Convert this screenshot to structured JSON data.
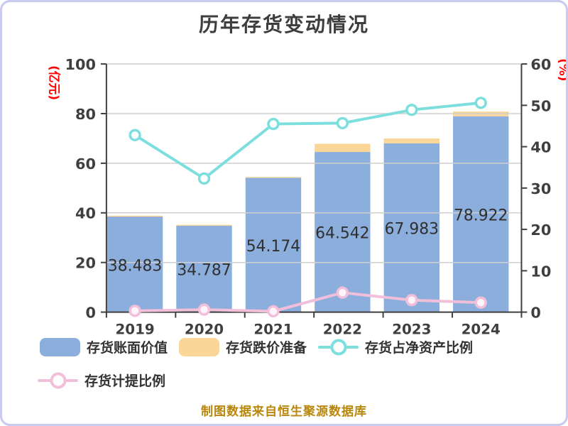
{
  "source_note": "制图数据来自恒生聚源数据库",
  "colors": {
    "frame_border": "#c9c9f2",
    "title_text": "#3d3d3d",
    "axis_line": "#3f3f3f",
    "tick_label": "#3f3f3f",
    "grid_line": "#cfcfcf",
    "bar_value_label": "#303030",
    "axis_unit_label": "#ff0000",
    "footer_text": "#b8860b"
  },
  "chart_data": {
    "type": "bar",
    "subtype": "stacked-bar-with-lines-combo",
    "title": "历年存货变动情况",
    "categories": [
      "2019",
      "2020",
      "2021",
      "2022",
      "2023",
      "2024"
    ],
    "series": [
      {
        "name": "存货账面价值",
        "type": "bar",
        "stack": "inventory",
        "y_axis": "left",
        "color": "#8caedc",
        "values": [
          38.483,
          34.787,
          54.174,
          64.542,
          67.983,
          78.922
        ],
        "data_labels": [
          38.483,
          34.787,
          54.174,
          64.542,
          67.983,
          78.922
        ]
      },
      {
        "name": "存货跌价准备",
        "type": "bar",
        "stack": "inventory",
        "y_axis": "left",
        "color": "#fad699",
        "values": [
          0.4,
          0.4,
          0.3,
          3.3,
          2.0,
          1.9
        ]
      },
      {
        "name": "存货占净资产比例",
        "type": "line",
        "y_axis": "right",
        "color": "#7cdfde",
        "marker_fill": "#ffffff",
        "values": [
          42.8,
          32.3,
          45.5,
          45.7,
          48.9,
          50.6
        ]
      },
      {
        "name": "存货计提比例",
        "type": "line",
        "y_axis": "right",
        "color": "#f2bfda",
        "marker_fill": "#fdf4f9",
        "values": [
          0.3,
          0.6,
          0.2,
          4.7,
          2.9,
          2.3
        ]
      }
    ],
    "left_axis": {
      "unit": "(亿元)",
      "unit_color": "#ff0000",
      "min": 0,
      "max": 100,
      "ticks": [
        0,
        20,
        40,
        60,
        80,
        100
      ]
    },
    "right_axis": {
      "unit": "(%)",
      "unit_color": "#ff0000",
      "min": 0,
      "max": 60,
      "ticks": [
        0,
        10,
        20,
        30,
        40,
        50,
        60
      ]
    },
    "grid": true,
    "legend_position": "bottom"
  }
}
